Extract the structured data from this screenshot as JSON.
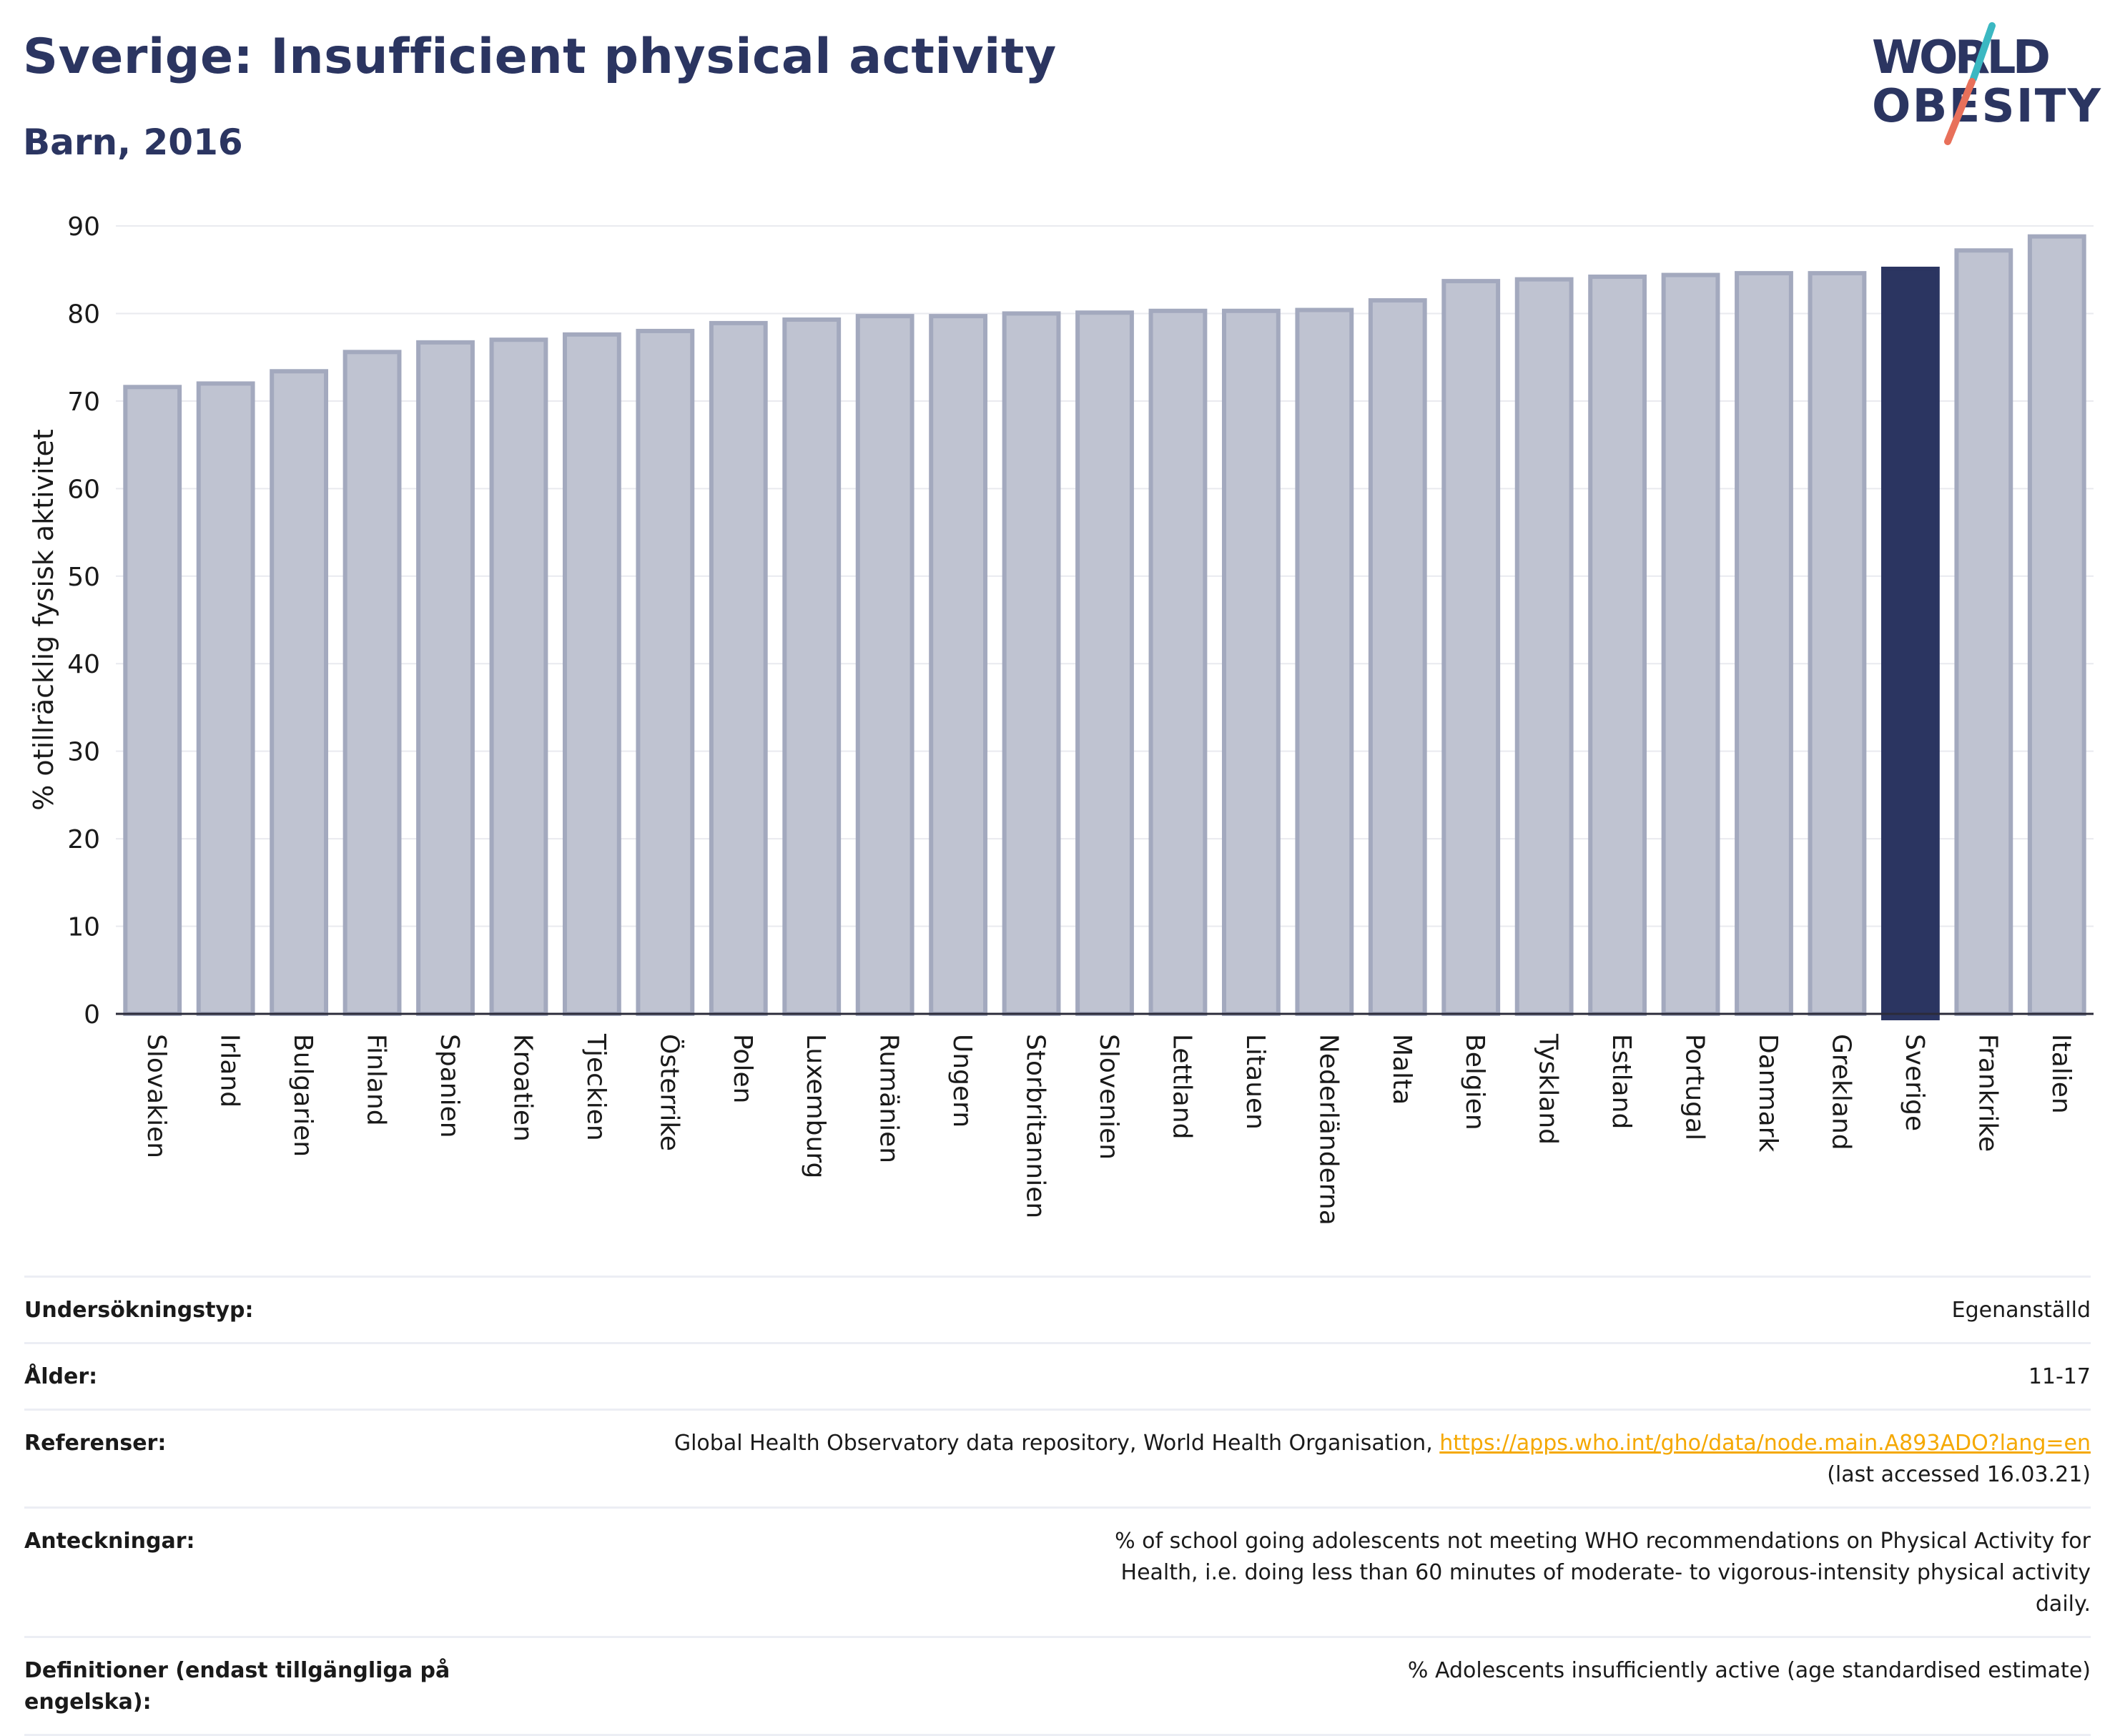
{
  "header": {
    "title": "Sverige: Insufficient physical activity",
    "subtitle": "Barn, 2016"
  },
  "logo": {
    "line1": "WORLD",
    "line2": "OBESITY",
    "colors": {
      "text": "#2b3561",
      "slash_top": "#3bb8c2",
      "slash_bottom": "#e8705a"
    }
  },
  "colors": {
    "bar_default": "#bfc3d1",
    "bar_outline": "#a3a9be",
    "bar_highlight": "#2b3561",
    "grid": "#e9eaef",
    "axis": "#2b2b3a",
    "link": "#f5a800"
  },
  "chart_data": {
    "type": "bar",
    "title": "Sverige: Insufficient physical activity",
    "subtitle": "Barn, 2016",
    "xlabel": "",
    "ylabel": "% otillräcklig fysisk aktivitet",
    "ylim": [
      0,
      90
    ],
    "yticks": [
      0,
      10,
      20,
      30,
      40,
      50,
      60,
      70,
      80,
      90
    ],
    "grid": true,
    "highlight": "Sverige",
    "categories": [
      "Slovakien",
      "Irland",
      "Bulgarien",
      "Finland",
      "Spanien",
      "Kroatien",
      "Tjeckien",
      "Österrike",
      "Polen",
      "Luxemburg",
      "Rumänien",
      "Ungern",
      "Storbritannien",
      "Slovenien",
      "Lettland",
      "Litauen",
      "Nederländerna",
      "Malta",
      "Belgien",
      "Tyskland",
      "Estland",
      "Portugal",
      "Danmark",
      "Grekland",
      "Sverige",
      "Frankrike",
      "Italien"
    ],
    "values": [
      71.6,
      72.0,
      73.4,
      75.6,
      76.7,
      77.0,
      77.6,
      78.0,
      78.9,
      79.3,
      79.7,
      79.7,
      80.0,
      80.1,
      80.3,
      80.3,
      80.4,
      81.5,
      83.7,
      83.9,
      84.2,
      84.4,
      84.6,
      84.6,
      85.1,
      87.2,
      88.8
    ]
  },
  "info": [
    {
      "label": "Undersökningstyp:",
      "value": "Egenanställd"
    },
    {
      "label": "Ålder:",
      "value": "11-17"
    },
    {
      "label": "Referenser:",
      "value": "Global Health Observatory data repository, World Health Organisation, ",
      "link": "https://apps.who.int/gho/data/node.main.A893ADO?lang=en",
      "extra": "(last accessed 16.03.21)"
    },
    {
      "label": "Anteckningar:",
      "value": "% of school going adolescents not meeting WHO recommendations on Physical Activity for Health, i.e. doing less than 60 minutes of moderate- to vigorous-intensity physical activity daily."
    },
    {
      "label": "Definitioner (endast tillgängliga på engelska):",
      "value": "% Adolescents insufficiently active (age standardised estimate)"
    }
  ]
}
